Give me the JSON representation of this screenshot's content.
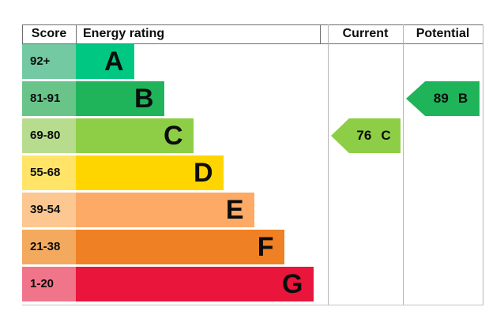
{
  "header": {
    "score": "Score",
    "energy_rating": "Energy rating",
    "current": "Current",
    "potential": "Potential"
  },
  "chart_data": {
    "type": "bar",
    "title": "Energy efficiency rating chart",
    "columns": [
      "Score",
      "Energy rating",
      "Current",
      "Potential"
    ],
    "bands": [
      {
        "letter": "A",
        "score_range": "92+",
        "bar_color": "#00c781",
        "score_cell_color": "#73c9a1"
      },
      {
        "letter": "B",
        "score_range": "81-91",
        "bar_color": "#1fb45a",
        "score_cell_color": "#68c489"
      },
      {
        "letter": "C",
        "score_range": "69-80",
        "bar_color": "#8dce46",
        "score_cell_color": "#b8dc8e"
      },
      {
        "letter": "D",
        "score_range": "55-68",
        "bar_color": "#ffd500",
        "score_cell_color": "#ffe468"
      },
      {
        "letter": "E",
        "score_range": "39-54",
        "bar_color": "#fcaa65",
        "score_cell_color": "#fcc791"
      },
      {
        "letter": "F",
        "score_range": "21-38",
        "bar_color": "#ef8023",
        "score_cell_color": "#f4aa5e"
      },
      {
        "letter": "G",
        "score_range": "1-20",
        "bar_color": "#e9153b",
        "score_cell_color": "#f0758a"
      }
    ],
    "current": {
      "score": "76",
      "band": "C",
      "color": "#8dce46"
    },
    "potential": {
      "score": "89",
      "band": "B",
      "color": "#1fb45a"
    },
    "layout_hints": {
      "bar_direction": "horizontal",
      "arrows_point": "left",
      "grid": "column-borders-only"
    }
  },
  "colors": {
    "text": "#0b0c0c",
    "header_border": "#6e6e6e",
    "column_border": "#b4b4b6",
    "background": "#ffffff"
  }
}
